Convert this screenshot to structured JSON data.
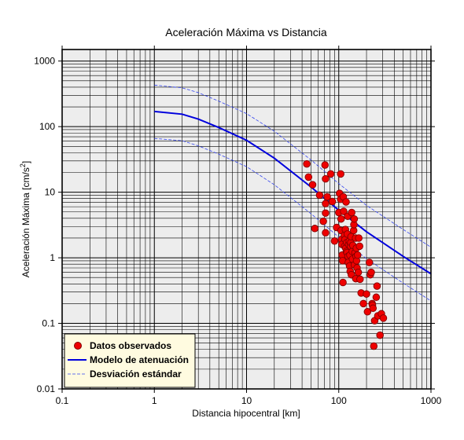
{
  "chart_data": {
    "type": "scatter",
    "title": "Aceleración Máxima vs Distancia",
    "xlabel": "Distancia hipocentral [km]",
    "ylabel_main": "Aceleración Máxima [cm/s",
    "ylabel_sup": "2",
    "ylabel_close": "]",
    "xscale": "log",
    "yscale": "log",
    "xlim": [
      0.1,
      1000
    ],
    "ylim": [
      0.01,
      1500
    ],
    "grid": true,
    "legend_position": "bottom-left",
    "x_ticks": [
      {
        "value": 0.1,
        "label": "0.1"
      },
      {
        "value": 1,
        "label": "1"
      },
      {
        "value": 10,
        "label": "10"
      },
      {
        "value": 100,
        "label": "100"
      },
      {
        "value": 1000,
        "label": "1000"
      }
    ],
    "y_ticks": [
      {
        "value": 0.01,
        "label": "0.01"
      },
      {
        "value": 0.1,
        "label": "0.1"
      },
      {
        "value": 1,
        "label": "1"
      },
      {
        "value": 10,
        "label": "10"
      },
      {
        "value": 100,
        "label": "100"
      },
      {
        "value": 1000,
        "label": "1000"
      }
    ],
    "series": [
      {
        "name": "Datos observados",
        "kind": "scatter",
        "color": "#ee0000",
        "edge": "#800000",
        "points": [
          [
            45,
            27
          ],
          [
            47,
            17
          ],
          [
            52,
            13
          ],
          [
            55,
            2.8
          ],
          [
            62,
            9
          ],
          [
            68,
            3.6
          ],
          [
            71,
            26
          ],
          [
            72,
            16
          ],
          [
            72,
            6.7
          ],
          [
            72,
            4.8
          ],
          [
            72,
            2.4
          ],
          [
            75,
            8.5
          ],
          [
            82,
            19
          ],
          [
            85,
            7.2
          ],
          [
            90,
            1.8
          ],
          [
            95,
            2.9
          ],
          [
            100,
            4.9
          ],
          [
            102,
            9.6
          ],
          [
            105,
            19
          ],
          [
            105,
            7.8
          ],
          [
            106,
            3.9
          ],
          [
            106,
            2.6
          ],
          [
            107,
            1.9
          ],
          [
            108,
            1.6
          ],
          [
            109,
            1.1
          ],
          [
            110,
            0.9
          ],
          [
            111,
            0.42
          ],
          [
            112,
            8.5
          ],
          [
            113,
            5.1
          ],
          [
            115,
            2.2
          ],
          [
            116,
            1.5
          ],
          [
            117,
            1.9
          ],
          [
            118,
            2.7
          ],
          [
            119,
            1.4
          ],
          [
            120,
            7.1
          ],
          [
            121,
            1.25
          ],
          [
            122,
            1.7
          ],
          [
            123,
            1.2
          ],
          [
            124,
            2.3
          ],
          [
            125,
            4.3
          ],
          [
            126,
            1.05
          ],
          [
            127,
            0.85
          ],
          [
            128,
            1.6
          ],
          [
            130,
            1.8
          ],
          [
            131,
            0.75
          ],
          [
            132,
            1.1
          ],
          [
            133,
            0.62
          ],
          [
            134,
            1.5
          ],
          [
            135,
            1.7
          ],
          [
            136,
            2.1
          ],
          [
            137,
            0.55
          ],
          [
            138,
            4.9
          ],
          [
            140,
            1.25
          ],
          [
            141,
            0.95
          ],
          [
            142,
            1.55
          ],
          [
            145,
            2.6
          ],
          [
            146,
            3.2
          ],
          [
            147,
            3.9
          ],
          [
            148,
            0.78
          ],
          [
            150,
            1.2
          ],
          [
            152,
            2.0
          ],
          [
            153,
            0.48
          ],
          [
            154,
            1.05
          ],
          [
            155,
            1.4
          ],
          [
            156,
            0.9
          ],
          [
            158,
            0.7
          ],
          [
            160,
            1.1
          ],
          [
            163,
            0.6
          ],
          [
            165,
            2.0
          ],
          [
            168,
            1.5
          ],
          [
            170,
            0.47
          ],
          [
            175,
            0.29
          ],
          [
            185,
            0.2
          ],
          [
            200,
            0.28
          ],
          [
            205,
            0.15
          ],
          [
            215,
            0.85
          ],
          [
            220,
            0.55
          ],
          [
            225,
            0.6
          ],
          [
            230,
            0.2
          ],
          [
            232,
            0.19
          ],
          [
            235,
            0.17
          ],
          [
            240,
            0.045
          ],
          [
            245,
            0.11
          ],
          [
            255,
            0.25
          ],
          [
            260,
            0.37
          ],
          [
            265,
            0.13
          ],
          [
            280,
            0.066
          ],
          [
            290,
            0.14
          ],
          [
            305,
            0.12
          ]
        ]
      },
      {
        "name": "Modelo de atenuación",
        "kind": "line",
        "color": "#0000dd",
        "points": [
          [
            1,
            170
          ],
          [
            2,
            155
          ],
          [
            3,
            130
          ],
          [
            5,
            97
          ],
          [
            10,
            62
          ],
          [
            20,
            33
          ],
          [
            50,
            12
          ],
          [
            100,
            5.3
          ],
          [
            200,
            2.5
          ],
          [
            500,
            1.05
          ],
          [
            1000,
            0.57
          ]
        ]
      },
      {
        "name": "Desviación estándar",
        "kind": "line-dashed",
        "color": "#3344ee",
        "points_upper": [
          [
            1,
            430
          ],
          [
            2,
            390
          ],
          [
            3,
            330
          ],
          [
            5,
            245
          ],
          [
            10,
            158
          ],
          [
            20,
            85
          ],
          [
            50,
            31
          ],
          [
            100,
            13.5
          ],
          [
            200,
            6.3
          ],
          [
            500,
            2.7
          ],
          [
            1000,
            1.45
          ]
        ],
        "points_lower": [
          [
            1,
            66
          ],
          [
            2,
            61
          ],
          [
            3,
            51
          ],
          [
            5,
            38
          ],
          [
            10,
            24.5
          ],
          [
            20,
            13
          ],
          [
            50,
            4.7
          ],
          [
            100,
            2.07
          ],
          [
            200,
            0.97
          ],
          [
            500,
            0.41
          ],
          [
            1000,
            0.22
          ]
        ]
      }
    ]
  }
}
